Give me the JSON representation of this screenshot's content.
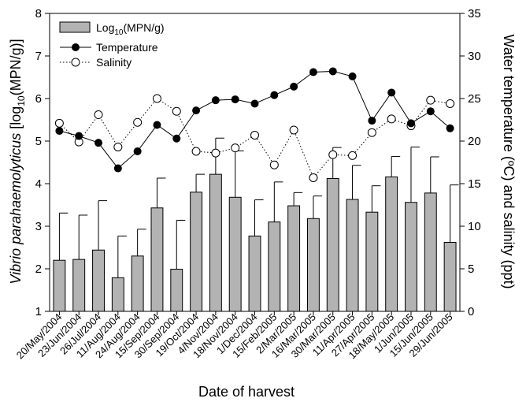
{
  "chart_data": {
    "type": "bar",
    "categories": [
      "20/May/2004",
      "23/Jun/2004",
      "26/Jul/2004",
      "11/Aug/2004",
      "24/Aug/2004",
      "15/Sep/2004",
      "30/Sep/2004",
      "19/Oct/2004",
      "4/Nov/2004",
      "18/Nov/2004",
      "1/Dec/2004",
      "15/Feb/2005",
      "2/Mar/2005",
      "16/Mar/2005",
      "30/Mar/2005",
      "11/Apr/2005",
      "27/Apr/2005",
      "18/May/2005",
      "1/Jun/2005",
      "15/Jun/2005",
      "29/Jun/2005"
    ],
    "series": [
      {
        "name": "Log10(MPN/g)",
        "name_base": "Log",
        "name_sub": "10",
        "name_rest": "(MPN/g)",
        "type": "bar",
        "axis": "left",
        "values": [
          2.2,
          2.22,
          2.44,
          1.79,
          2.3,
          3.43,
          1.99,
          3.8,
          4.22,
          3.68,
          2.77,
          3.1,
          3.48,
          3.18,
          4.12,
          3.63,
          3.33,
          4.16,
          3.56,
          3.78,
          2.62
        ],
        "error_upper": [
          3.31,
          3.26,
          3.6,
          2.77,
          2.93,
          4.13,
          3.14,
          4.22,
          5.07,
          4.77,
          3.62,
          4.04,
          3.79,
          3.71,
          4.85,
          4.43,
          3.95,
          4.64,
          4.86,
          4.63,
          3.97
        ],
        "color": "#b3b3b3"
      },
      {
        "name": "Temperature",
        "type": "line",
        "axis": "right",
        "marker": "filled-circle",
        "line_style": "solid",
        "values": [
          21.2,
          20.6,
          19.8,
          16.8,
          18.8,
          21.9,
          20.3,
          23.6,
          24.8,
          24.9,
          24.4,
          25.4,
          26.4,
          28.1,
          28.2,
          27.6,
          22.4,
          25.7,
          22.1,
          23.5,
          21.5
        ]
      },
      {
        "name": "Salinity",
        "type": "line",
        "axis": "right",
        "marker": "open-circle",
        "line_style": "dotted",
        "values": [
          22.1,
          19.9,
          23.1,
          19.3,
          22.2,
          25.0,
          23.5,
          18.8,
          18.6,
          19.2,
          20.7,
          17.2,
          21.3,
          15.7,
          18.4,
          18.3,
          21.0,
          22.6,
          21.8,
          24.8,
          24.4
        ]
      }
    ],
    "xlabel": "Date of harvest",
    "ylabel_left_pre": "Vibrio parahaemolyticus",
    "ylabel_left_mid": " [log",
    "ylabel_left_sub": "10",
    "ylabel_left_post": "(MPN/g)]",
    "ylabel_right": "Water temperature (ºC) and salinity (ppt)",
    "ylim_left": [
      1,
      8
    ],
    "yticks_left": [
      1,
      2,
      3,
      4,
      5,
      6,
      7,
      8
    ],
    "ylim_right": [
      0,
      35
    ],
    "yticks_right": [
      0,
      5,
      10,
      15,
      20,
      25,
      30,
      35
    ],
    "legend_position": "top-left",
    "grid": false
  }
}
